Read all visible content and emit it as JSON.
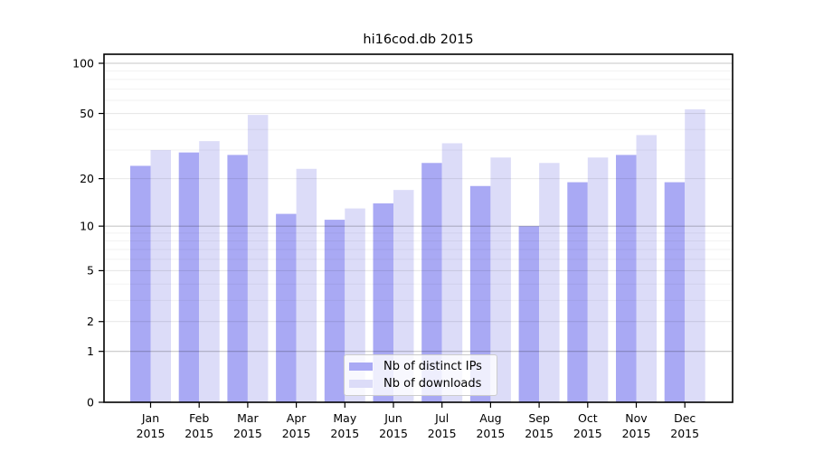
{
  "title": "hi16cod.db 2015",
  "chart_data": {
    "type": "bar",
    "title": "hi16cod.db 2015",
    "xlabel": "",
    "ylabel": "",
    "yscale": "symlog",
    "ylim": [
      0,
      113
    ],
    "grid": true,
    "legend_position": "lower-center",
    "x_categories": [
      "Jan 2015",
      "Feb 2015",
      "Mar 2015",
      "Apr 2015",
      "May 2015",
      "Jun 2015",
      "Jul 2015",
      "Aug 2015",
      "Sep 2015",
      "Oct 2015",
      "Nov 2015",
      "Dec 2015"
    ],
    "y_ticks": [
      0,
      1,
      2,
      5,
      10,
      20,
      50,
      100
    ],
    "y_minor_ticks": [
      3,
      4,
      6,
      7,
      8,
      9,
      30,
      40,
      60,
      70,
      80,
      90
    ],
    "series": [
      {
        "name": "Nb of distinct IPs",
        "color": "#a9a9f4",
        "values": [
          24,
          29,
          28,
          12,
          11,
          14,
          25,
          18,
          10,
          19,
          28,
          19
        ]
      },
      {
        "name": "Nb of downloads",
        "color": "#dcdcf8",
        "values": [
          30,
          34,
          49,
          23,
          13,
          17,
          33,
          27,
          25,
          27,
          37,
          53
        ]
      }
    ]
  }
}
